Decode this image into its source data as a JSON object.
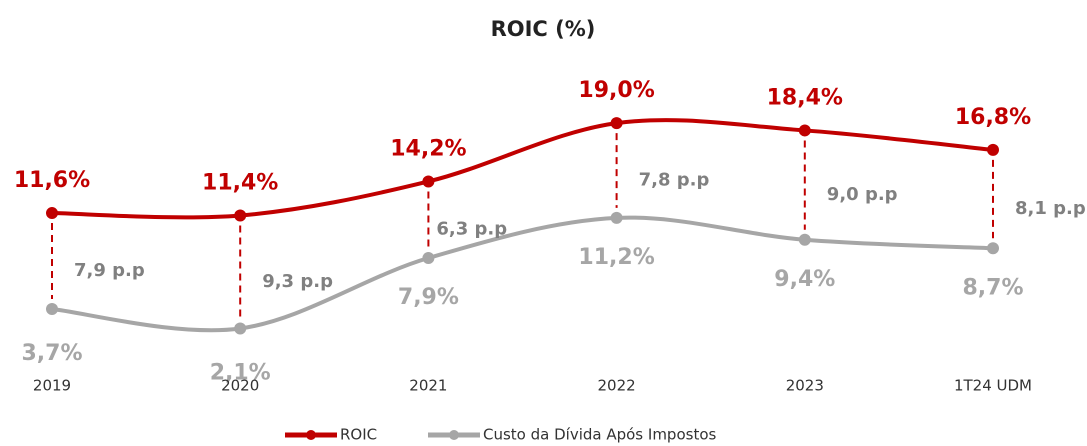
{
  "chart_data": {
    "type": "line",
    "title": "ROIC (%)",
    "categories": [
      "2019",
      "2020",
      "2021",
      "2022",
      "2023",
      "1T24 UDM"
    ],
    "series": [
      {
        "name": "ROIC",
        "color": "#c00000",
        "values": [
          11.6,
          11.4,
          14.2,
          19.0,
          18.4,
          16.8
        ],
        "value_labels": [
          "11,6%",
          "11,4%",
          "14,2%",
          "19,0%",
          "18,4%",
          "16,8%"
        ]
      },
      {
        "name": "Custo da Dívida Após Impostos",
        "color": "#a6a6a6",
        "values": [
          3.7,
          2.1,
          7.9,
          11.2,
          9.4,
          8.7
        ],
        "value_labels": [
          "3,7%",
          "2,1%",
          "7,9%",
          "11,2%",
          "9,4%",
          "8,7%"
        ]
      }
    ],
    "annotations": [
      "7,9 p.p",
      "9,3 p.p",
      "6,3 p.p",
      "7,8 p.p",
      "9,0 p.p",
      "8,1 p.p"
    ],
    "ylim": [
      0,
      20
    ],
    "grid": false
  }
}
